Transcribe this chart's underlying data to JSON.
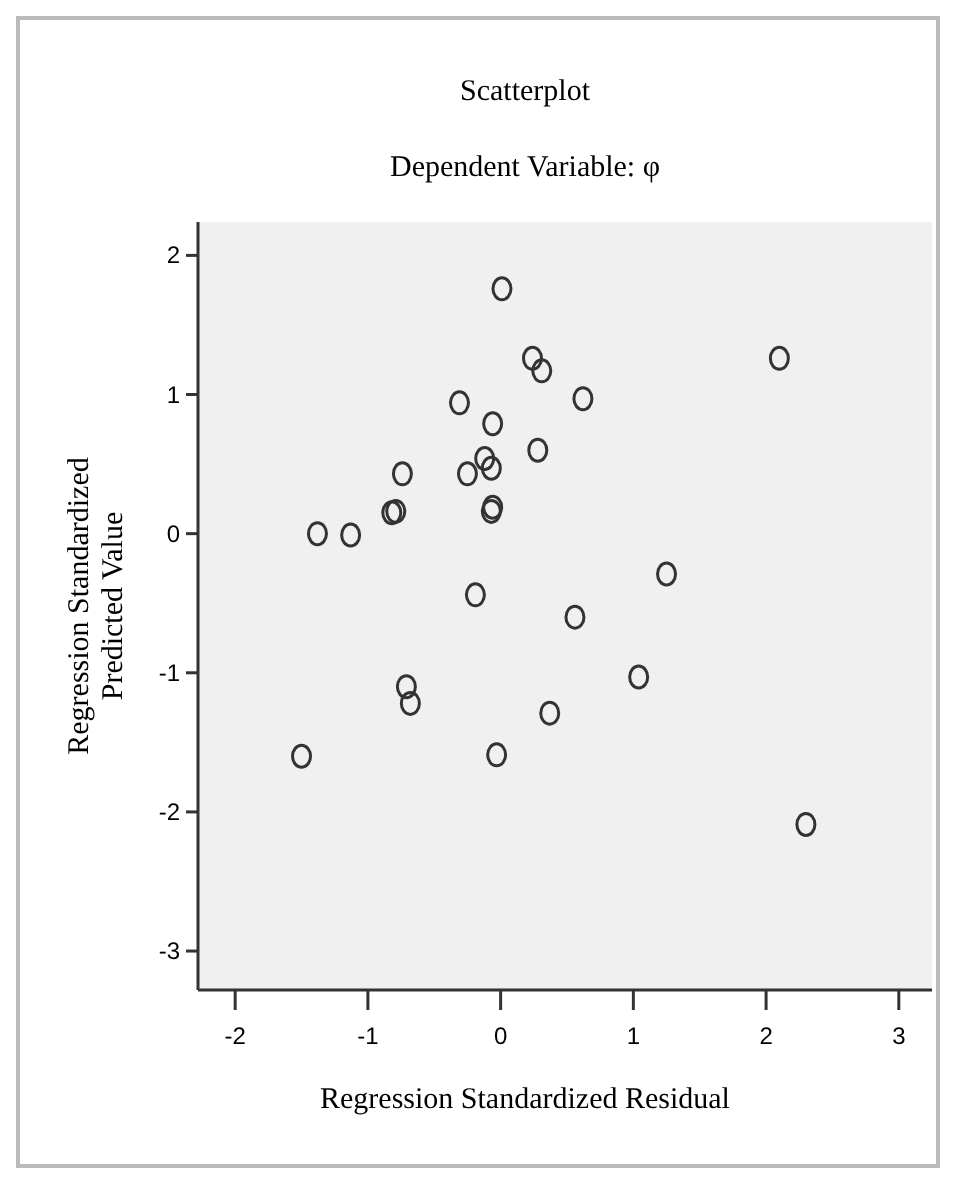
{
  "chart_data": {
    "type": "scatter",
    "title": "Scatterplot",
    "subtitle": "Dependent Variable: φ",
    "xlabel": "Regression Standardized Residual",
    "ylabel": "Regression Standardized Predicted Value",
    "xlim": [
      -2.28,
      3.25
    ],
    "ylim": [
      -3.28,
      2.24
    ],
    "xticks": [
      -2,
      -1,
      0,
      1,
      2,
      3
    ],
    "yticks": [
      -3,
      -2,
      -1,
      0,
      1,
      2
    ],
    "marker": "circle",
    "grid": false,
    "series": [
      {
        "color": "#333333",
        "x": [
          0.01,
          0.24,
          0.31,
          -0.31,
          -0.06,
          0.62,
          -0.25,
          -0.74,
          -0.12,
          -0.07,
          0.28,
          -0.07,
          -0.06,
          -0.82,
          -0.79,
          -1.38,
          -1.13,
          -0.19,
          1.25,
          0.56,
          -0.71,
          -0.68,
          1.04,
          0.37,
          -1.5,
          -0.03,
          2.3,
          2.1
        ],
        "values": [
          1.76,
          1.26,
          1.17,
          0.94,
          0.79,
          0.97,
          0.43,
          0.43,
          0.54,
          0.47,
          0.6,
          0.16,
          0.19,
          0.15,
          0.16,
          0.0,
          -0.01,
          -0.44,
          -0.29,
          -0.6,
          -1.1,
          -1.22,
          -1.03,
          -1.29,
          -1.6,
          -1.59,
          -2.09,
          1.26
        ]
      }
    ]
  }
}
